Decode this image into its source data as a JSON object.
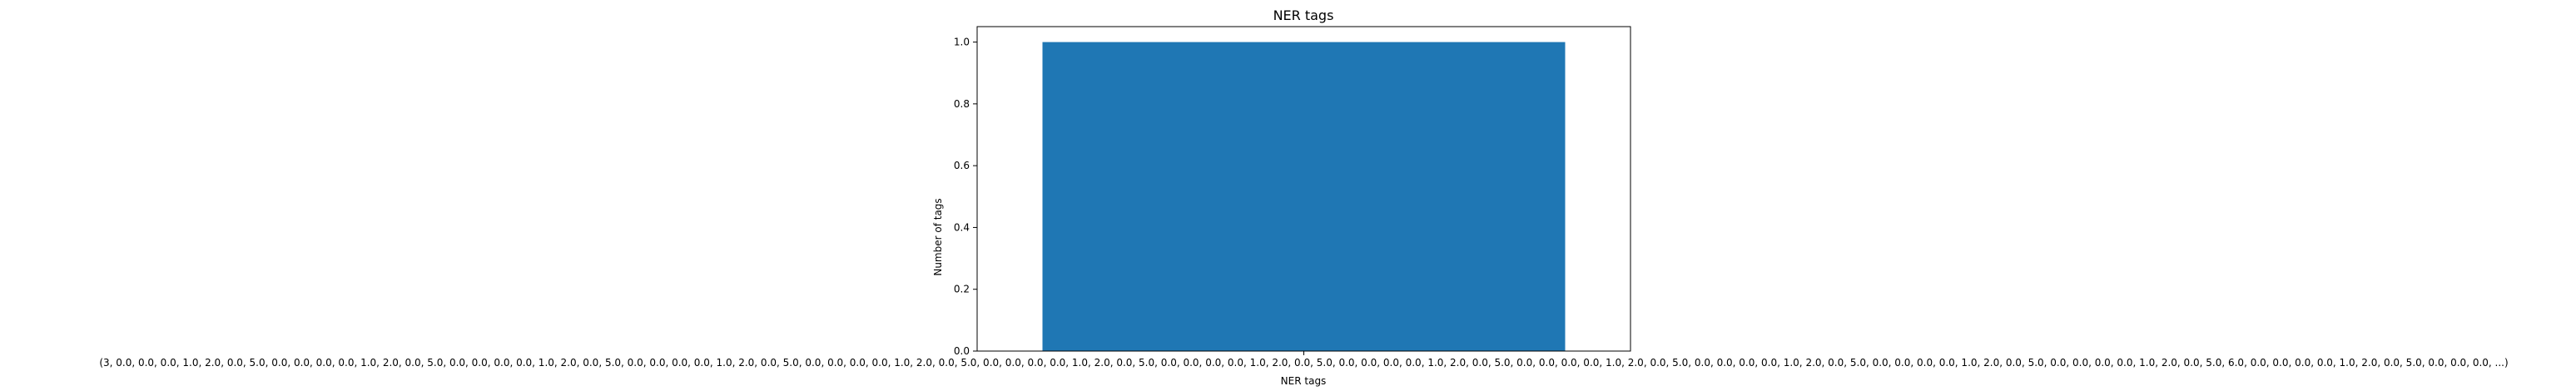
{
  "chart_data": {
    "type": "bar",
    "title": "NER tags",
    "xlabel": "NER tags",
    "ylabel": "Number of tags",
    "categories": [
      "(3, 0.0, 0.0, 0.0, 1.0, 2.0, 0.0, 5.0, 0.0, 0.0, 0.0, 0.0, 1.0, 2.0, 0.0, 5.0, 0.0, 0.0, 0.0, 0.0, 1.0, 2.0, 0.0, 5.0, 0.0, 0.0, 0.0, 0.0, 1.0, 2.0, 0.0, 5.0, 0.0, 0.0, 0.0, 0.0, 1.0, 2.0, 0.0, 5.0, 0.0, 0.0, 0.0, 0.0, 1.0, 2.0, 0.0, 5.0, 0.0, 0.0, 0.0, 0.0, 1.0, 2.0, 0.0, 5.0, 0.0, 0.0, 0.0, 0.0, 1.0, 2.0, 0.0, 5.0, 0.0, 0.0, 0.0, 0.0, 1.0, 2.0, 0.0, 5.0, 0.0, 0.0, 0.0, 0.0, 1.0, 2.0, 0.0, 5.0, 0.0, 0.0, 0.0, 0.0, 1.0, 2.0, 0.0, 5.0, 0.0, 0.0, 0.0, 0.0, 1.0, 2.0, 0.0, 5.0, 6.0, 0.0, 0.0, 0.0, 0.0, 1.0, 2.0, 0.0, 5.0, 0.0, 0.0, 0.0, ...)"
    ],
    "values": [
      1.0
    ],
    "ylim": [
      0,
      1.05
    ],
    "yticks": [
      0.0,
      0.2,
      0.4,
      0.6,
      0.8,
      1.0
    ],
    "ytick_labels": [
      "0.0",
      "0.2",
      "0.4",
      "0.6",
      "0.8",
      "1.0"
    ],
    "bar_color": "#1f77b4",
    "grid": false
  }
}
